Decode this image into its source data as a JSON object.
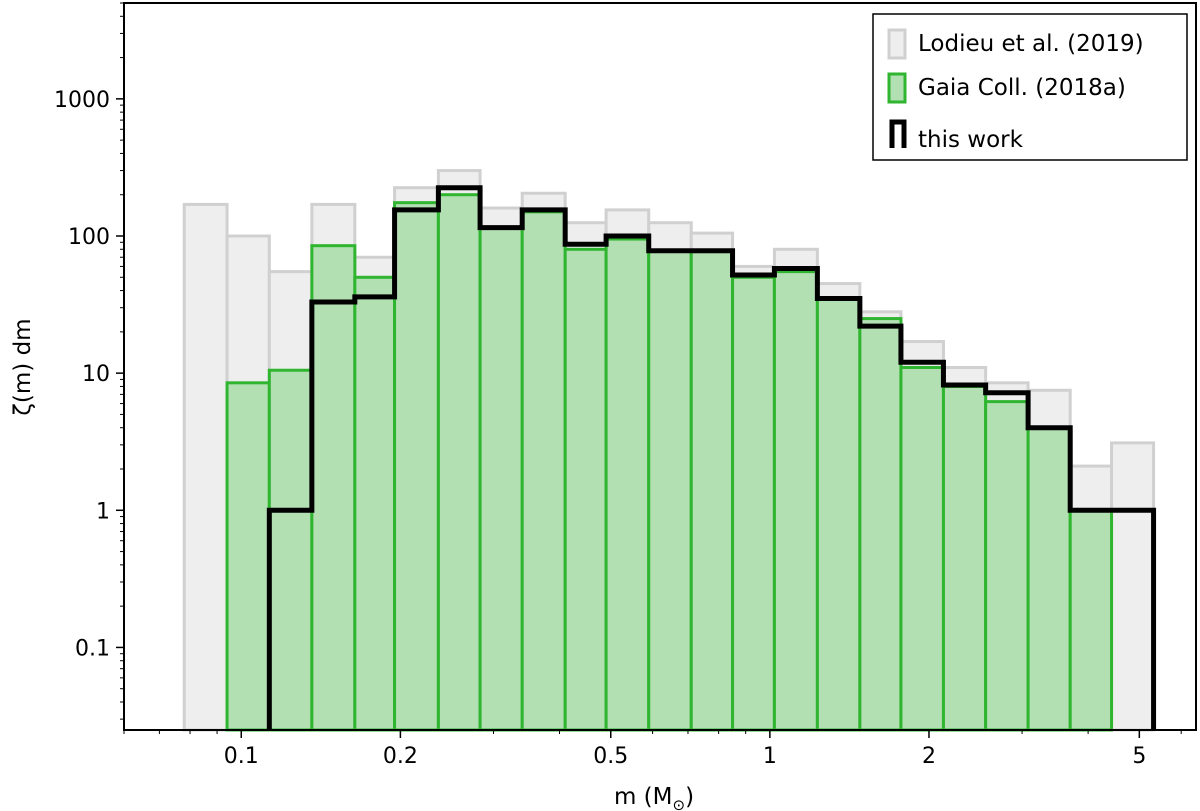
{
  "chart_data": {
    "type": "bar",
    "xlabel": "m (M",
    "xlabel_sub": "⊙",
    "xlabel_close": ")",
    "ylabel": "ζ(m) dm",
    "xscale": "log",
    "yscale": "log",
    "xlim": [
      0.06,
      6.4
    ],
    "ylim": [
      0.025,
      5000
    ],
    "x_ticks": [
      {
        "value": 0.1,
        "label": "0.1"
      },
      {
        "value": 0.2,
        "label": "0.2"
      },
      {
        "value": 0.5,
        "label": "0.5"
      },
      {
        "value": 1,
        "label": "1"
      },
      {
        "value": 2,
        "label": "2"
      },
      {
        "value": 5,
        "label": "5"
      }
    ],
    "y_ticks": [
      {
        "value": 0.1,
        "label": "0.1"
      },
      {
        "value": 1,
        "label": "1"
      },
      {
        "value": 10,
        "label": "10"
      },
      {
        "value": 100,
        "label": "100"
      },
      {
        "value": 1000,
        "label": "1000"
      }
    ],
    "legend_position": "top-right",
    "bin_edges": [
      0.078,
      0.094,
      0.113,
      0.136,
      0.164,
      0.195,
      0.236,
      0.283,
      0.34,
      0.41,
      0.49,
      0.59,
      0.71,
      0.85,
      1.02,
      1.23,
      1.48,
      1.77,
      2.13,
      2.56,
      3.08,
      3.7,
      4.43,
      5.32
    ],
    "series": [
      {
        "name": "Lodieu et al. (2019)",
        "style": "light-gray-filled",
        "color": "#d0d0d0",
        "fill": "#eeeeee",
        "values": [
          170,
          100,
          55,
          170,
          70,
          225,
          300,
          160,
          205,
          125,
          155,
          125,
          105,
          60,
          80,
          45,
          28,
          17,
          11,
          8.5,
          7.5,
          2.1,
          3.1
        ]
      },
      {
        "name": "Gaia Coll. (2018a)",
        "style": "green-filled",
        "color": "#2fb52f",
        "fill": "#b3e0b3",
        "values": [
          null,
          8.5,
          10.5,
          85,
          50,
          175,
          200,
          115,
          150,
          80,
          95,
          78,
          77,
          50,
          55,
          35,
          25,
          11,
          8,
          6.2,
          4,
          1,
          null
        ]
      },
      {
        "name": "this work",
        "style": "black-step",
        "color": "#000000",
        "values": [
          null,
          null,
          1,
          33,
          36,
          155,
          225,
          115,
          155,
          87,
          100,
          78,
          78,
          52,
          58,
          35,
          22,
          12,
          8.2,
          7.2,
          4,
          1,
          1
        ]
      }
    ]
  }
}
